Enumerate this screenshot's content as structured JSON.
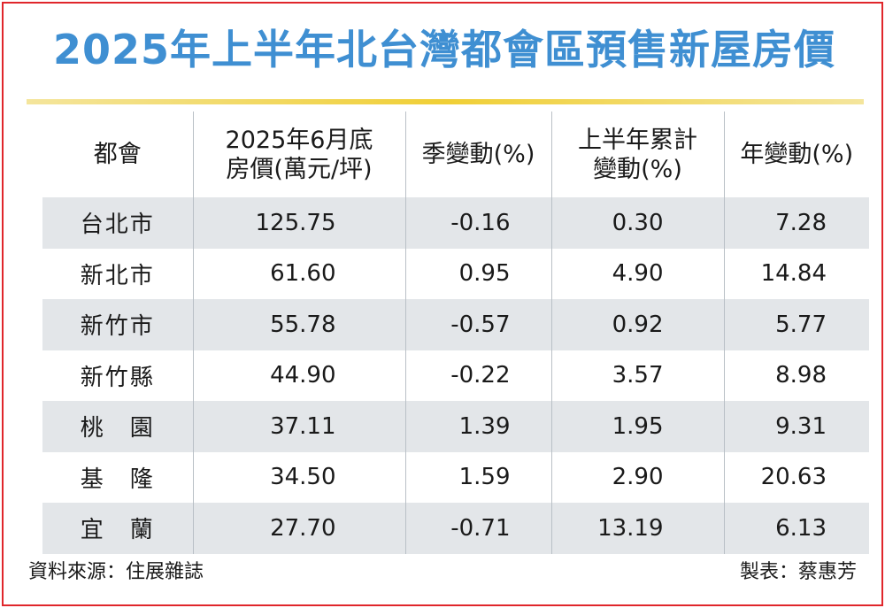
{
  "title": "2025年上半年北台灣都會區預售新屋房價",
  "columns": [
    {
      "line1": "都會",
      "line2": ""
    },
    {
      "line1": "2025年6月底",
      "line2": "房價(萬元/坪)"
    },
    {
      "line1": "季變動(%)",
      "line2": ""
    },
    {
      "line1": "上半年累計",
      "line2": "變動(%)"
    },
    {
      "line1": "年變動(%)",
      "line2": ""
    }
  ],
  "rows": [
    {
      "city": "台北市",
      "price": "125.75",
      "quarter": "-0.16",
      "half": "0.30",
      "year": "7.28"
    },
    {
      "city": "新北市",
      "price": "61.60",
      "quarter": "0.95",
      "half": "4.90",
      "year": "14.84"
    },
    {
      "city": "新竹市",
      "price": "55.78",
      "quarter": "-0.57",
      "half": "0.92",
      "year": "5.77"
    },
    {
      "city": "新竹縣",
      "price": "44.90",
      "quarter": "-0.22",
      "half": "3.57",
      "year": "8.98"
    },
    {
      "city": "桃　園",
      "price": "37.11",
      "quarter": "1.39",
      "half": "1.95",
      "year": "9.31"
    },
    {
      "city": "基　隆",
      "price": "34.50",
      "quarter": "1.59",
      "half": "2.90",
      "year": "20.63"
    },
    {
      "city": "宜　蘭",
      "price": "27.70",
      "quarter": "-0.71",
      "half": "13.19",
      "year": "6.13"
    }
  ],
  "footer": {
    "source": "資料來源：住展雜誌",
    "maker": "製表：蔡惠芳"
  },
  "colors": {
    "title": "#3f8fd2",
    "frame": "#e0262b",
    "rule": "#f0cf36",
    "stripe": "#e3e6e9"
  }
}
